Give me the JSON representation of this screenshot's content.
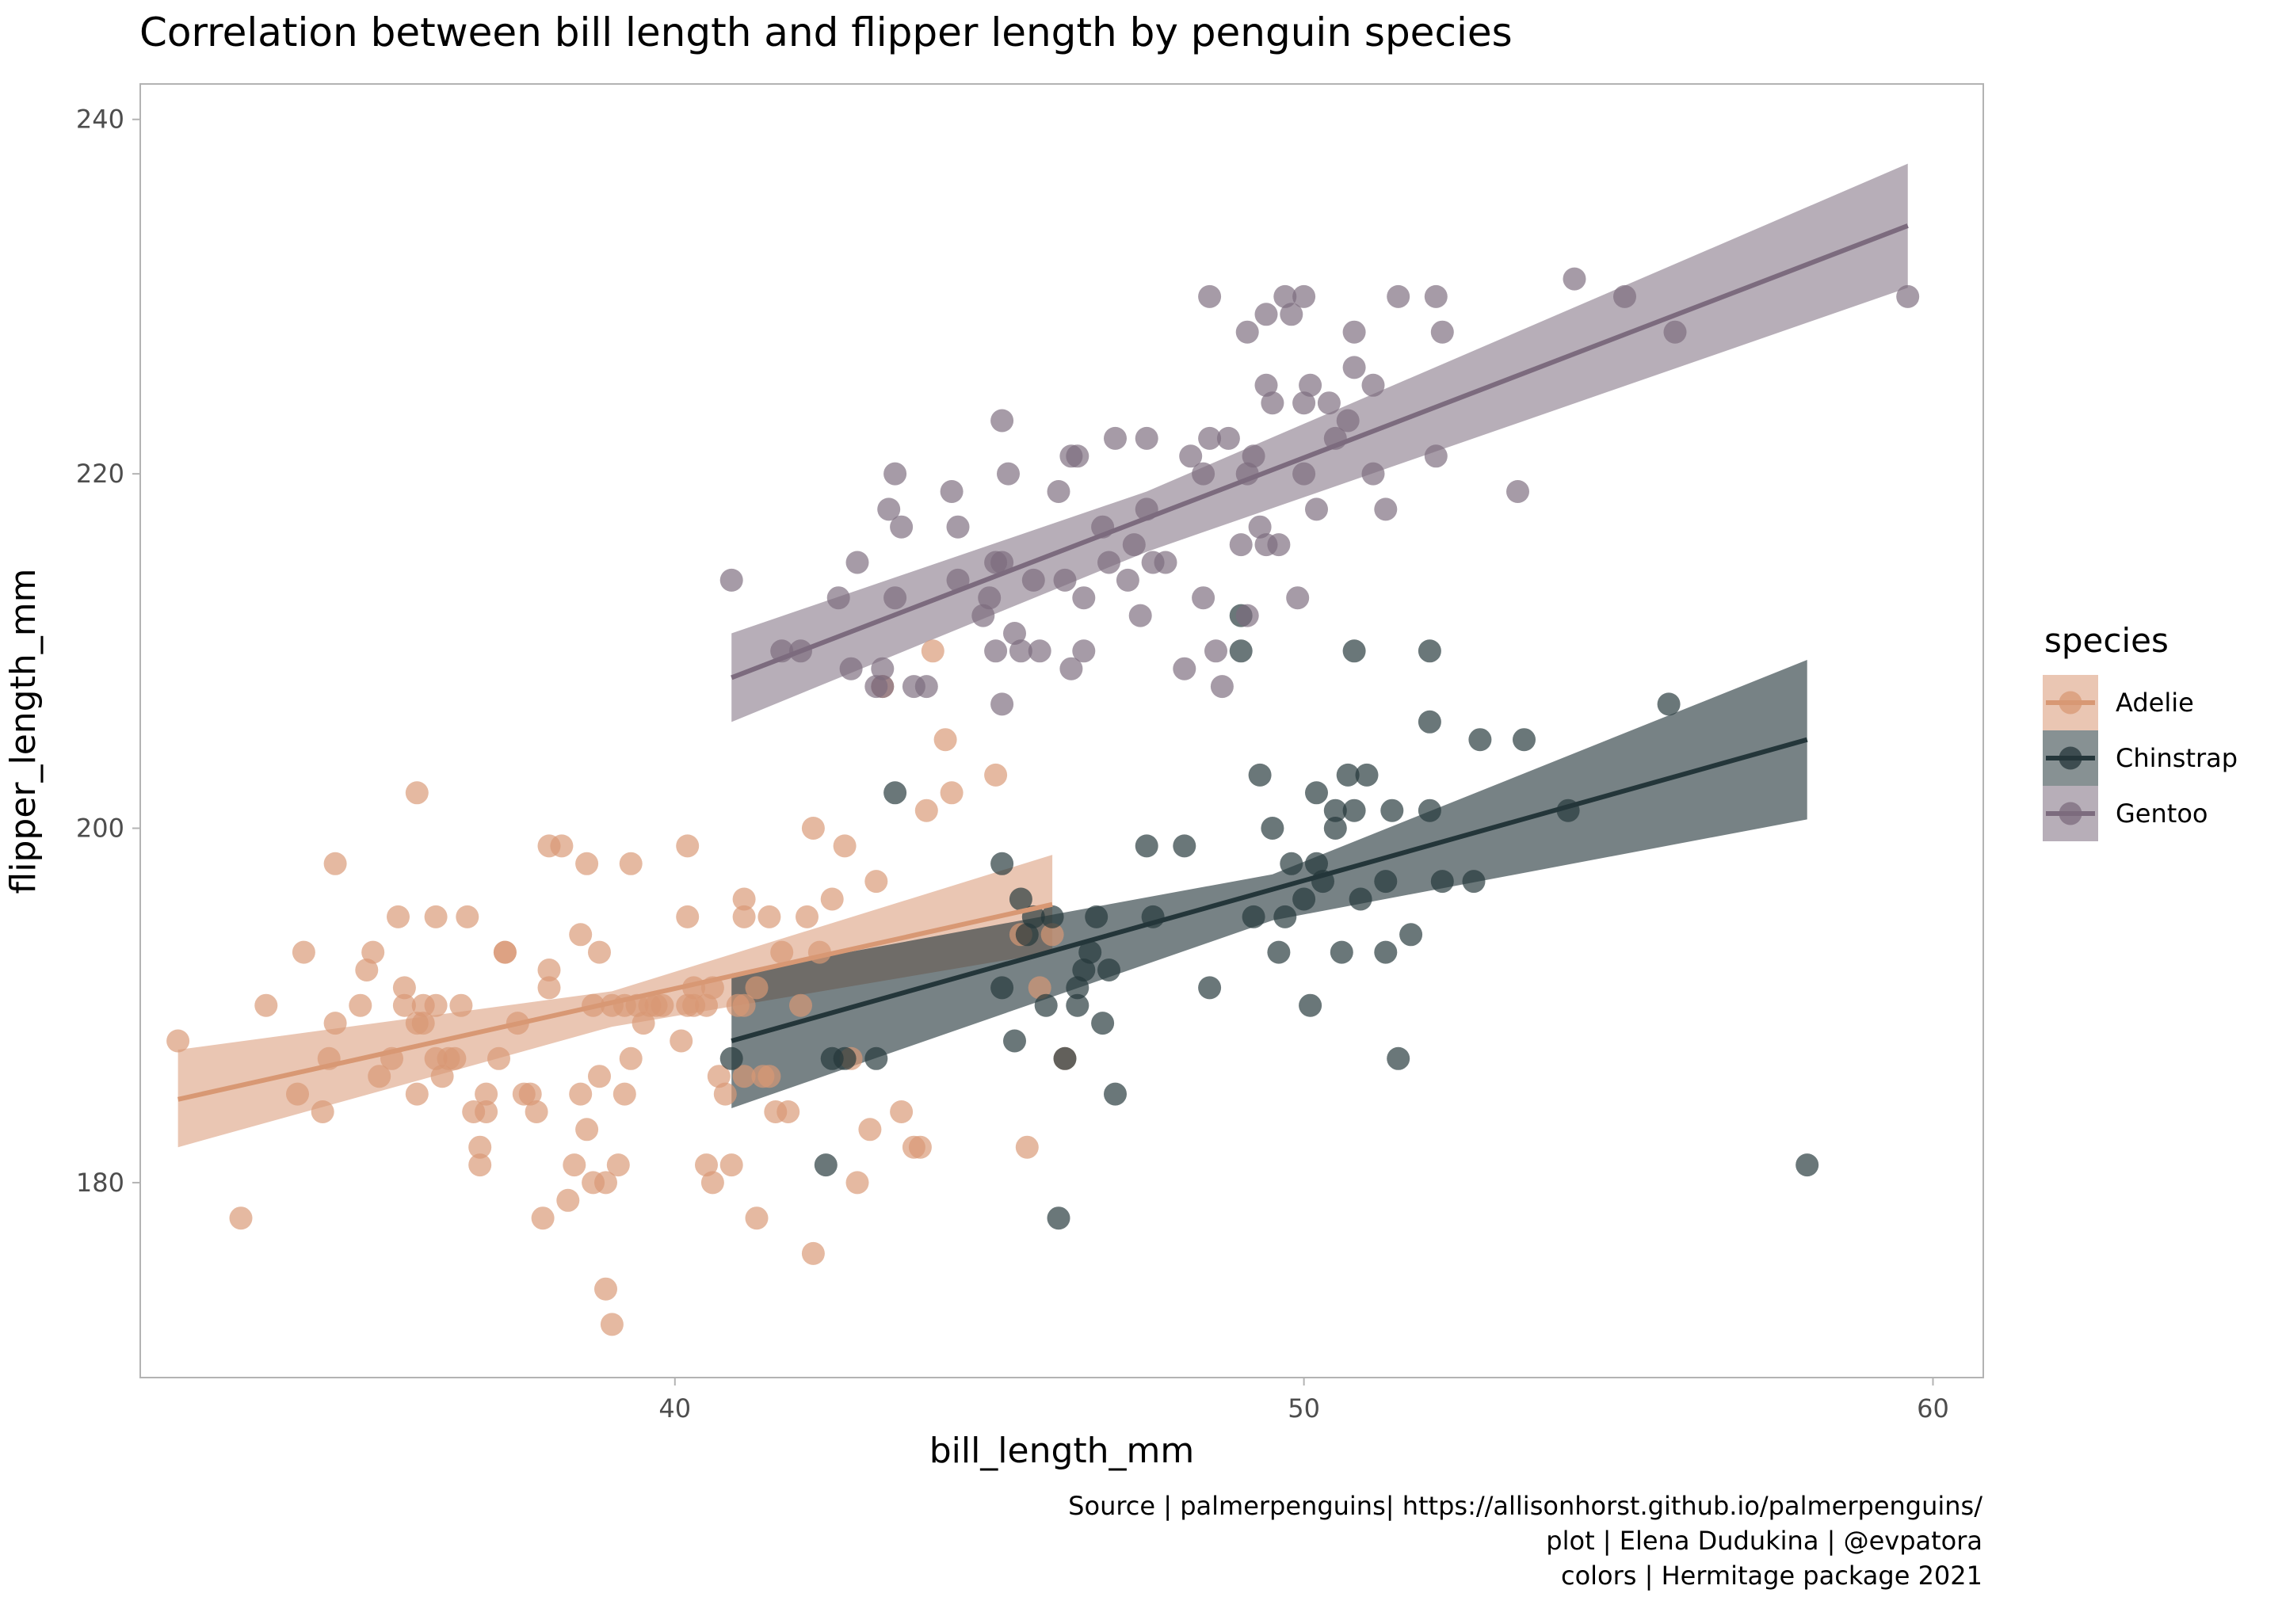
{
  "chart_data": {
    "type": "scatter",
    "title": "Correlation between bill length and flipper length by penguin species",
    "xlabel": "bill_length_mm",
    "ylabel": "flipper_length_mm",
    "xlim": [
      31.5,
      60.8
    ],
    "ylim": [
      169.0,
      242.0
    ],
    "x_ticks": [
      40,
      50,
      60
    ],
    "y_ticks": [
      180,
      200,
      220,
      240
    ],
    "grid": false,
    "legend": {
      "title": "species",
      "position": "right"
    },
    "caption": [
      "Source | palmerpenguins| https://allisonhorst.github.io/palmerpenguins/",
      "plot | Elena Dudukina | @evpatora",
      "colors | Hermitage package 2021"
    ],
    "series": [
      {
        "name": "Adelie",
        "color": "#d89874",
        "fit": {
          "x0": 32.1,
          "y0": 184.7,
          "x1": 46.0,
          "y1": 195.7,
          "band": [
            [
              32.1,
              182.0,
              187.5
            ],
            [
              39.0,
              188.8,
              190.8
            ],
            [
              46.0,
              193.0,
              198.5
            ]
          ]
        },
        "points": [
          [
            32.1,
            188
          ],
          [
            33.1,
            178
          ],
          [
            33.5,
            190
          ],
          [
            34.0,
            185
          ],
          [
            34.1,
            193
          ],
          [
            34.4,
            184
          ],
          [
            34.5,
            187
          ],
          [
            34.6,
            189
          ],
          [
            34.6,
            198
          ],
          [
            35.0,
            190
          ],
          [
            35.1,
            192
          ],
          [
            35.2,
            193
          ],
          [
            35.3,
            186
          ],
          [
            35.5,
            187
          ],
          [
            35.6,
            195
          ],
          [
            35.7,
            190
          ],
          [
            35.7,
            191
          ],
          [
            35.9,
            189
          ],
          [
            35.9,
            185
          ],
          [
            35.9,
            202
          ],
          [
            36.0,
            189
          ],
          [
            36.0,
            190
          ],
          [
            36.2,
            187
          ],
          [
            36.2,
            190
          ],
          [
            36.2,
            195
          ],
          [
            36.3,
            186
          ],
          [
            36.4,
            187
          ],
          [
            36.5,
            187
          ],
          [
            36.6,
            190
          ],
          [
            36.7,
            195
          ],
          [
            36.8,
            184
          ],
          [
            36.9,
            181
          ],
          [
            36.9,
            182
          ],
          [
            37.0,
            184
          ],
          [
            37.0,
            185
          ],
          [
            37.2,
            187
          ],
          [
            37.3,
            193
          ],
          [
            37.3,
            193
          ],
          [
            37.5,
            189
          ],
          [
            37.6,
            185
          ],
          [
            37.7,
            185
          ],
          [
            37.8,
            184
          ],
          [
            37.9,
            178
          ],
          [
            38.0,
            192
          ],
          [
            38.0,
            191
          ],
          [
            38.0,
            199
          ],
          [
            38.2,
            199
          ],
          [
            38.3,
            179
          ],
          [
            38.4,
            181
          ],
          [
            38.5,
            194
          ],
          [
            38.5,
            185
          ],
          [
            38.6,
            183
          ],
          [
            38.6,
            198
          ],
          [
            38.7,
            190
          ],
          [
            38.7,
            180
          ],
          [
            38.8,
            186
          ],
          [
            38.8,
            193
          ],
          [
            38.9,
            180
          ],
          [
            38.9,
            174
          ],
          [
            39.0,
            172
          ],
          [
            39.0,
            190
          ],
          [
            39.1,
            181
          ],
          [
            39.2,
            190
          ],
          [
            39.2,
            185
          ],
          [
            39.3,
            187
          ],
          [
            39.3,
            198
          ],
          [
            39.4,
            190
          ],
          [
            39.5,
            189
          ],
          [
            39.6,
            190
          ],
          [
            39.7,
            190
          ],
          [
            39.8,
            190
          ],
          [
            40.1,
            188
          ],
          [
            40.2,
            190
          ],
          [
            40.2,
            199
          ],
          [
            40.2,
            195
          ],
          [
            40.3,
            191
          ],
          [
            40.3,
            190
          ],
          [
            40.5,
            181
          ],
          [
            40.5,
            190
          ],
          [
            40.6,
            180
          ],
          [
            40.6,
            191
          ],
          [
            40.7,
            186
          ],
          [
            40.8,
            185
          ],
          [
            40.9,
            181
          ],
          [
            41.0,
            190
          ],
          [
            41.1,
            190
          ],
          [
            41.1,
            196
          ],
          [
            41.1,
            195
          ],
          [
            41.1,
            186
          ],
          [
            41.3,
            191
          ],
          [
            41.3,
            178
          ],
          [
            41.4,
            186
          ],
          [
            41.5,
            195
          ],
          [
            41.5,
            186
          ],
          [
            41.6,
            184
          ],
          [
            41.7,
            193
          ],
          [
            41.8,
            184
          ],
          [
            42.0,
            190
          ],
          [
            42.1,
            195
          ],
          [
            42.2,
            200
          ],
          [
            42.2,
            176
          ],
          [
            42.3,
            193
          ],
          [
            42.5,
            196
          ],
          [
            42.7,
            199
          ],
          [
            42.8,
            187
          ],
          [
            42.9,
            180
          ],
          [
            43.1,
            183
          ],
          [
            43.2,
            197
          ],
          [
            43.3,
            208
          ],
          [
            43.6,
            184
          ],
          [
            43.8,
            182
          ],
          [
            43.9,
            182
          ],
          [
            44.0,
            201
          ],
          [
            44.1,
            210
          ],
          [
            44.3,
            205
          ],
          [
            44.4,
            202
          ],
          [
            45.1,
            203
          ],
          [
            45.5,
            194
          ],
          [
            45.6,
            182
          ],
          [
            45.8,
            191
          ],
          [
            46.0,
            194
          ],
          [
            46.2,
            187
          ]
        ]
      },
      {
        "name": "Chinstrap",
        "color": "#24363a",
        "fit": {
          "x0": 40.9,
          "y0": 188.0,
          "x1": 58.0,
          "y1": 205.0,
          "band": [
            [
              40.9,
              184.2,
              191.8
            ],
            [
              49.5,
              194.8,
              197.4
            ],
            [
              58.0,
              200.5,
              209.5
            ]
          ]
        },
        "points": [
          [
            40.9,
            187
          ],
          [
            42.4,
            181
          ],
          [
            42.5,
            187
          ],
          [
            42.7,
            187
          ],
          [
            43.2,
            187
          ],
          [
            43.5,
            202
          ],
          [
            45.2,
            198
          ],
          [
            45.2,
            191
          ],
          [
            45.4,
            188
          ],
          [
            45.5,
            196
          ],
          [
            45.6,
            194
          ],
          [
            45.7,
            195
          ],
          [
            45.9,
            190
          ],
          [
            46.0,
            195
          ],
          [
            46.1,
            178
          ],
          [
            46.2,
            187
          ],
          [
            46.4,
            190
          ],
          [
            46.4,
            191
          ],
          [
            46.5,
            192
          ],
          [
            46.6,
            193
          ],
          [
            46.7,
            195
          ],
          [
            46.8,
            189
          ],
          [
            46.9,
            192
          ],
          [
            47.0,
            185
          ],
          [
            47.5,
            199
          ],
          [
            47.6,
            195
          ],
          [
            48.1,
            199
          ],
          [
            48.5,
            191
          ],
          [
            49.0,
            210
          ],
          [
            49.0,
            212
          ],
          [
            49.2,
            195
          ],
          [
            49.3,
            203
          ],
          [
            49.5,
            200
          ],
          [
            49.6,
            193
          ],
          [
            49.7,
            195
          ],
          [
            49.8,
            198
          ],
          [
            50.0,
            196
          ],
          [
            50.1,
            190
          ],
          [
            50.2,
            198
          ],
          [
            50.2,
            202
          ],
          [
            50.3,
            197
          ],
          [
            50.5,
            200
          ],
          [
            50.5,
            201
          ],
          [
            50.6,
            193
          ],
          [
            50.7,
            203
          ],
          [
            50.8,
            201
          ],
          [
            50.8,
            210
          ],
          [
            50.9,
            196
          ],
          [
            51.0,
            203
          ],
          [
            51.3,
            193
          ],
          [
            51.3,
            197
          ],
          [
            51.4,
            201
          ],
          [
            51.5,
            187
          ],
          [
            51.7,
            194
          ],
          [
            52.0,
            210
          ],
          [
            52.0,
            206
          ],
          [
            52.0,
            201
          ],
          [
            52.2,
            197
          ],
          [
            52.7,
            197
          ],
          [
            52.8,
            205
          ],
          [
            53.5,
            205
          ],
          [
            54.2,
            201
          ],
          [
            55.8,
            207
          ],
          [
            58.0,
            181
          ]
        ]
      },
      {
        "name": "Gentoo",
        "color": "#7c6b7e",
        "fit": {
          "x0": 40.9,
          "y0": 208.5,
          "x1": 59.6,
          "y1": 234.0,
          "band": [
            [
              40.9,
              206.0,
              211.0
            ],
            [
              47.5,
              215.6,
              219.0
            ],
            [
              59.6,
              230.5,
              237.5
            ]
          ]
        },
        "points": [
          [
            40.9,
            214
          ],
          [
            41.7,
            210
          ],
          [
            42.0,
            210
          ],
          [
            42.6,
            213
          ],
          [
            42.8,
            209
          ],
          [
            42.9,
            215
          ],
          [
            43.2,
            208
          ],
          [
            43.3,
            209
          ],
          [
            43.3,
            208
          ],
          [
            43.4,
            218
          ],
          [
            43.5,
            220
          ],
          [
            43.5,
            213
          ],
          [
            43.6,
            217
          ],
          [
            43.8,
            208
          ],
          [
            44.0,
            208
          ],
          [
            44.4,
            219
          ],
          [
            44.5,
            214
          ],
          [
            44.5,
            217
          ],
          [
            44.9,
            212
          ],
          [
            45.0,
            213
          ],
          [
            45.1,
            210
          ],
          [
            45.1,
            215
          ],
          [
            45.2,
            207
          ],
          [
            45.2,
            215
          ],
          [
            45.3,
            220
          ],
          [
            45.4,
            211
          ],
          [
            45.5,
            210
          ],
          [
            45.7,
            214
          ],
          [
            45.8,
            210
          ],
          [
            46.1,
            219
          ],
          [
            46.2,
            214
          ],
          [
            46.3,
            209
          ],
          [
            46.4,
            221
          ],
          [
            46.5,
            213
          ],
          [
            46.5,
            210
          ],
          [
            46.8,
            217
          ],
          [
            46.9,
            215
          ],
          [
            47.2,
            214
          ],
          [
            47.3,
            216
          ],
          [
            47.4,
            212
          ],
          [
            47.5,
            218
          ],
          [
            47.6,
            215
          ],
          [
            47.8,
            215
          ],
          [
            48.1,
            209
          ],
          [
            48.2,
            221
          ],
          [
            48.4,
            220
          ],
          [
            48.4,
            213
          ],
          [
            48.5,
            222
          ],
          [
            48.6,
            210
          ],
          [
            48.7,
            208
          ],
          [
            48.8,
            222
          ],
          [
            49.0,
            216
          ],
          [
            49.1,
            212
          ],
          [
            49.1,
            220
          ],
          [
            49.2,
            221
          ],
          [
            49.3,
            217
          ],
          [
            49.4,
            216
          ],
          [
            49.5,
            224
          ],
          [
            49.6,
            216
          ],
          [
            49.8,
            229
          ],
          [
            49.9,
            213
          ],
          [
            50.0,
            220
          ],
          [
            50.0,
            224
          ],
          [
            50.1,
            225
          ],
          [
            50.2,
            218
          ],
          [
            50.4,
            224
          ],
          [
            50.5,
            222
          ],
          [
            50.7,
            223
          ],
          [
            50.8,
            226
          ],
          [
            50.8,
            228
          ],
          [
            51.1,
            225
          ],
          [
            51.1,
            220
          ],
          [
            51.3,
            218
          ],
          [
            51.5,
            230
          ],
          [
            52.1,
            221
          ],
          [
            52.2,
            228
          ],
          [
            53.4,
            219
          ],
          [
            54.3,
            231
          ],
          [
            55.1,
            230
          ],
          [
            55.9,
            228
          ],
          [
            59.6,
            230
          ],
          [
            48.5,
            230
          ],
          [
            49.1,
            228
          ],
          [
            49.4,
            229
          ],
          [
            49.7,
            230
          ],
          [
            50.0,
            230
          ],
          [
            52.1,
            230
          ],
          [
            45.2,
            223
          ],
          [
            46.3,
            221
          ],
          [
            47.0,
            222
          ],
          [
            47.5,
            222
          ],
          [
            49.4,
            225
          ]
        ]
      }
    ]
  }
}
